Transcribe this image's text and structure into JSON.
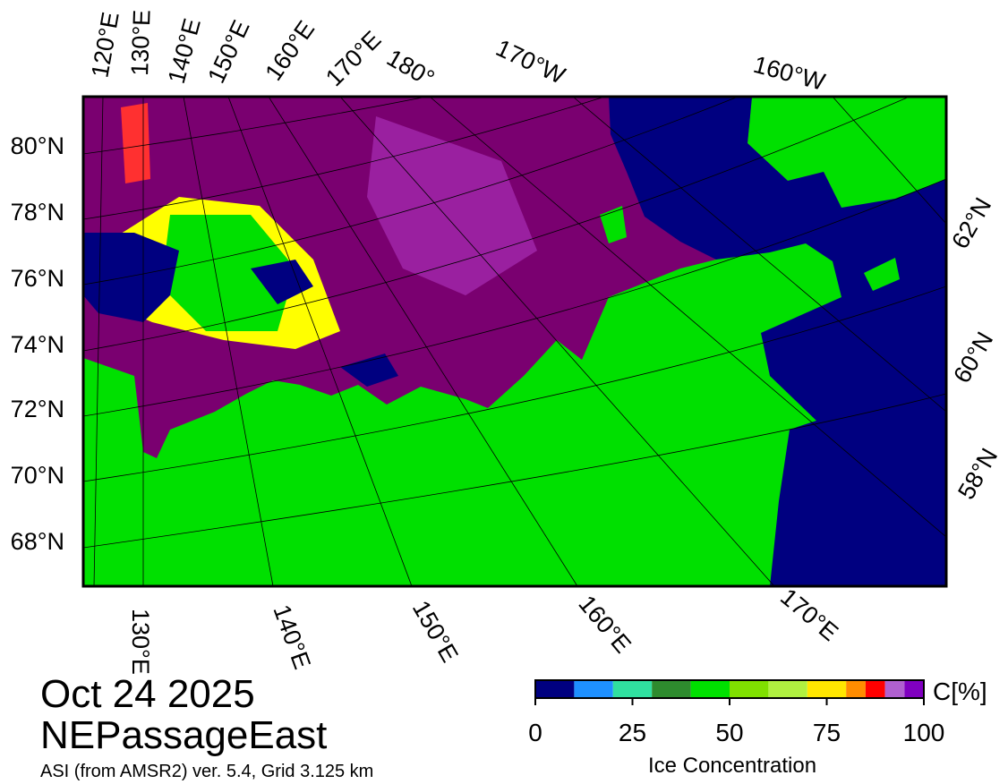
{
  "map": {
    "left_latitude_labels": [
      "80°N",
      "78°N",
      "76°N",
      "74°N",
      "72°N",
      "70°N",
      "68°N"
    ],
    "top_longitude_labels": [
      "120°E",
      "130°E",
      "140°E",
      "150°E",
      "160°E",
      "170°E",
      "180°",
      "170°W",
      "160°W"
    ],
    "bottom_longitude_labels": [
      "130°E",
      "140°E",
      "150°E",
      "160°E",
      "170°E"
    ],
    "right_latitude_labels": [
      "62°N",
      "60°N",
      "58°N"
    ]
  },
  "footer": {
    "date": "Oct 24 2025",
    "region": "NEPassageEast",
    "source": "ASI (from AMSR2) ver. 5.4,  Grid 3.125 km"
  },
  "colorbar": {
    "title": "Ice Concentration",
    "unit": "C[%]",
    "ticks": [
      0,
      25,
      50,
      75,
      100
    ],
    "bounds": [
      0,
      10,
      20,
      30,
      40,
      50,
      60,
      70,
      80,
      85,
      90,
      95,
      100
    ],
    "colors": [
      "#000080",
      "#1e90ff",
      "#30e0a0",
      "#2e8b2e",
      "#00e000",
      "#80e000",
      "#b0f040",
      "#ffe600",
      "#ff8c00",
      "#ff0000",
      "#b060d0",
      "#8000c0"
    ]
  }
}
